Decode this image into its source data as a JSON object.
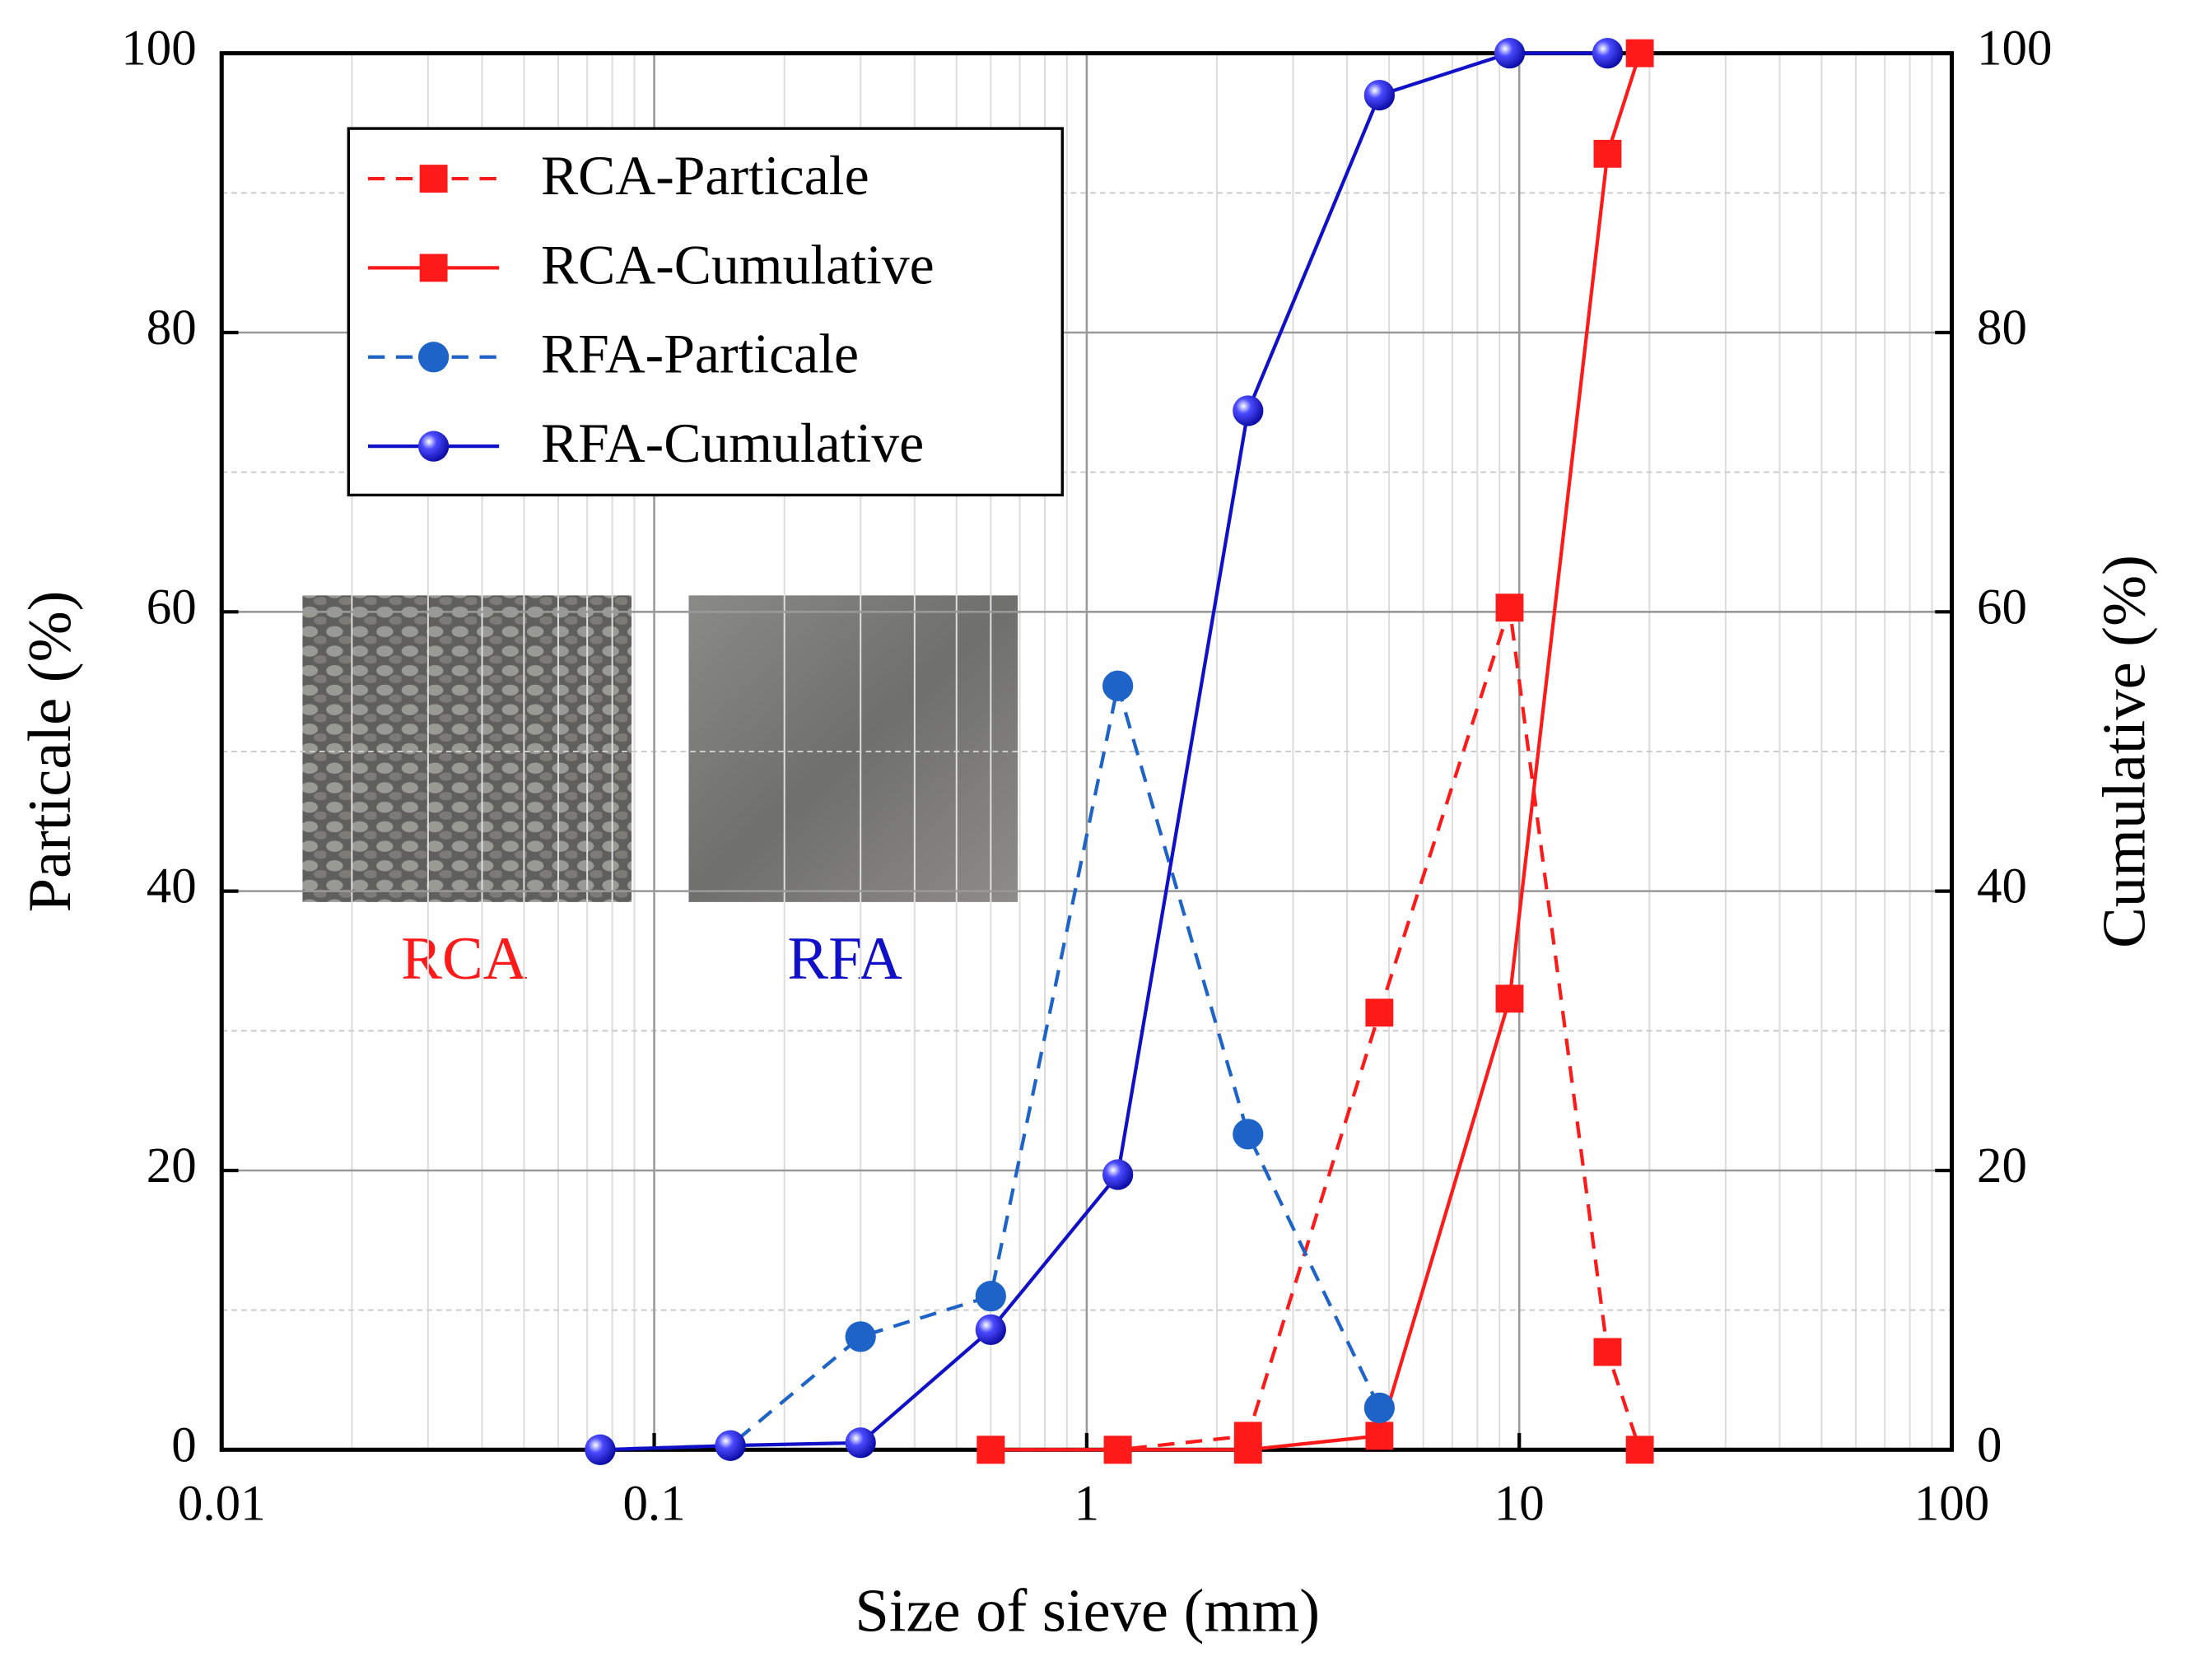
{
  "chart_data": {
    "type": "line",
    "xlabel": "Size of sieve (mm)",
    "ylabel": "Particale (%)",
    "y2label": "Cumulative (%)",
    "x": [
      0.075,
      0.15,
      0.3,
      0.6,
      1.18,
      2.36,
      4.75,
      9.5,
      16,
      19
    ],
    "xlog": true,
    "xlim": [
      0.01,
      100
    ],
    "xticks": [
      0.01,
      0.1,
      1,
      10,
      100
    ],
    "ylim": [
      0,
      100
    ],
    "yticks": [
      0,
      20,
      40,
      60,
      80,
      100
    ],
    "yminor": [
      10,
      30,
      50,
      70,
      90
    ],
    "y2lim": [
      0,
      100
    ],
    "y2ticks": [
      0,
      20,
      40,
      60,
      80,
      100
    ],
    "grid": true,
    "legend": "upper left",
    "series": [
      {
        "name": "RCA-Particale",
        "color": "#ff1a1a",
        "dash": true,
        "marker": "square",
        "values": [
          null,
          null,
          null,
          0,
          0,
          1,
          31.3,
          60.3,
          7,
          0
        ]
      },
      {
        "name": "RCA-Cumulative",
        "color": "#ff1a1a",
        "dash": false,
        "marker": "square",
        "axis": "y2",
        "values": [
          null,
          null,
          null,
          0,
          0,
          0,
          1,
          32.3,
          92.8,
          100
        ]
      },
      {
        "name": "RFA-Particale",
        "color": "#1e64c8",
        "dash": true,
        "marker": "circle",
        "values": [
          0,
          0.3,
          8.1,
          11,
          54.7,
          22.6,
          3,
          null,
          null,
          null
        ]
      },
      {
        "name": "RFA-Cumulative",
        "color": "#1010c8",
        "dash": false,
        "marker": "sphere",
        "axis": "y2",
        "values": [
          0,
          0.3,
          0.5,
          8.6,
          19.7,
          74.4,
          97,
          100,
          100,
          null
        ]
      }
    ],
    "annotations": [
      {
        "text": "RCA",
        "color": "#ff1a1a"
      },
      {
        "text": "RFA",
        "color": "#1010c8"
      }
    ]
  }
}
